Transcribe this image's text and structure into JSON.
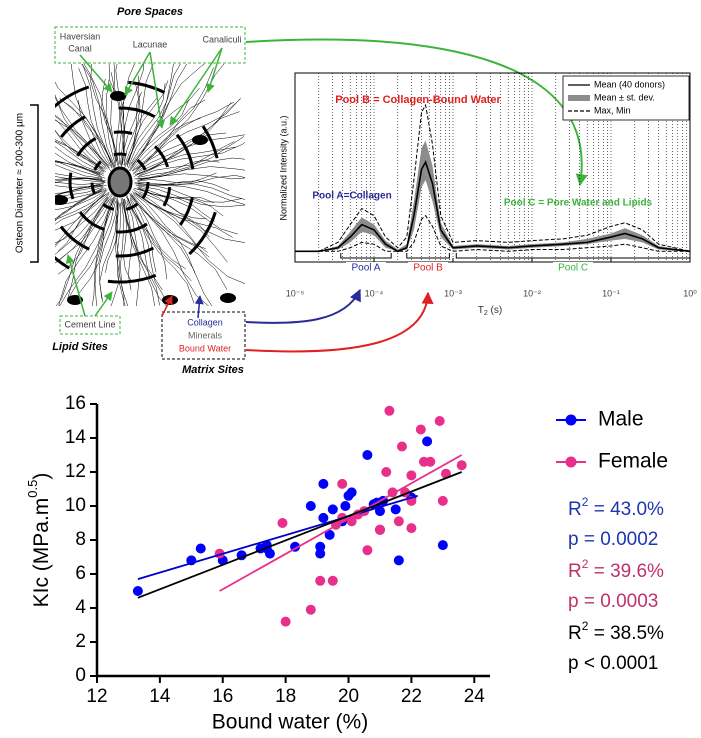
{
  "diagram": {
    "pore_spaces": "Pore Spaces",
    "haversian": [
      "Haversian",
      "Canal"
    ],
    "lacunae": "Lacunae",
    "canaliculi": "Canaliculi",
    "osteon_diameter": "Osteon Diameter ≈ 200-300 µm",
    "cement_line": "Cement Line",
    "lipid_sites": "Lipid Sites",
    "collagen": "Collagen",
    "minerals": "Minerals",
    "bound_water": "Bound Water",
    "matrix_sites": "Matrix Sites"
  },
  "chart_data": [
    {
      "type": "line",
      "xscale": "log",
      "ylabel": "Normalized Intensity (a.u.)",
      "xlabel": {
        "main": "T",
        "sub": "2",
        "rest": " (s)"
      },
      "xlim": [
        1e-05,
        1
      ],
      "ylim": [
        -0.06,
        1
      ],
      "xticks": [
        {
          "value": 1e-05,
          "label": "10⁻⁵"
        },
        {
          "value": 0.0001,
          "label": "10⁻⁴"
        },
        {
          "value": 0.001,
          "label": "10⁻³"
        },
        {
          "value": 0.01,
          "label": "10⁻²"
        },
        {
          "value": 0.1,
          "label": "10⁻¹"
        },
        {
          "value": 1,
          "label": "10⁰"
        }
      ],
      "grid": true,
      "x": [
        1e-05,
        2e-05,
        3.5e-05,
        5e-05,
        7e-05,
        0.0001,
        0.00014,
        0.0002,
        0.00026,
        0.00032,
        0.0004,
        0.00045,
        0.00055,
        0.0007,
        0.001,
        0.002,
        0.005,
        0.01,
        0.025,
        0.05,
        0.1,
        0.15,
        0.25,
        0.4,
        1
      ],
      "series": [
        {
          "name": "Mean (40 donors)",
          "color": "#000000",
          "values": [
            0,
            0,
            0.02,
            0.08,
            0.15,
            0.12,
            0.04,
            0,
            0.02,
            0.2,
            0.46,
            0.5,
            0.38,
            0.12,
            0.02,
            0.03,
            0.02,
            0.03,
            0.04,
            0.05,
            0.08,
            0.1,
            0.07,
            0.02,
            0
          ]
        },
        {
          "name": "Mean ± st. dev.",
          "color": "#8c8c8c",
          "lower": [
            0,
            0,
            0.01,
            0.05,
            0.11,
            0.09,
            0.02,
            0,
            0.01,
            0.12,
            0.36,
            0.4,
            0.28,
            0.08,
            0.01,
            0.02,
            0.01,
            0.02,
            0.03,
            0.04,
            0.06,
            0.07,
            0.05,
            0.01,
            0
          ],
          "upper": [
            0,
            0,
            0.03,
            0.11,
            0.19,
            0.15,
            0.06,
            0.01,
            0.04,
            0.28,
            0.58,
            0.62,
            0.48,
            0.16,
            0.03,
            0.04,
            0.03,
            0.04,
            0.05,
            0.07,
            0.1,
            0.13,
            0.09,
            0.03,
            0
          ]
        },
        {
          "name": "Max, Min",
          "color": "#000000",
          "dash": true,
          "max": [
            0,
            0,
            0.05,
            0.15,
            0.24,
            0.2,
            0.08,
            0.02,
            0.08,
            0.4,
            0.78,
            0.82,
            0.6,
            0.2,
            0.05,
            0.06,
            0.05,
            0.06,
            0.07,
            0.09,
            0.14,
            0.16,
            0.12,
            0.04,
            0
          ],
          "min": [
            0,
            0,
            0,
            0.02,
            0.05,
            0.04,
            0,
            0,
            0,
            0.05,
            0.18,
            0.2,
            0.14,
            0.03,
            0,
            0.01,
            0,
            0.01,
            0.01,
            0.02,
            0.03,
            0.04,
            0.02,
            0,
            0
          ]
        }
      ],
      "annotations": [
        {
          "text": "Pool B = Collagen-Bound Water",
          "color": "#e02020"
        },
        {
          "text": "Pool A=Collagen",
          "color": "#2a2a9a"
        },
        {
          "text": "Pool C = Pore Water and Lipids",
          "color": "#3cb43c"
        }
      ],
      "pools": [
        {
          "label": "Pool A",
          "color": "#2a2a9a",
          "range": [
            3.8e-05,
            0.000165
          ]
        },
        {
          "label": "Pool B",
          "color": "#e02020",
          "range": [
            0.00026,
            0.0009
          ]
        },
        {
          "label": "Pool C",
          "color": "#3cb43c",
          "range": [
            0.0011,
            1
          ]
        }
      ]
    },
    {
      "type": "scatter",
      "xlabel": "Bound water (%)",
      "ylabel": {
        "main": "KIc (MPa.m",
        "sup": "0.5",
        "rest": ")"
      },
      "xlim": [
        12,
        24.5
      ],
      "ylim": [
        0,
        16
      ],
      "xticks": [
        12,
        14,
        16,
        18,
        20,
        22,
        24
      ],
      "yticks": [
        0,
        2,
        4,
        6,
        8,
        10,
        12,
        14,
        16
      ],
      "series": [
        {
          "name": "Male",
          "color": "#0000ff",
          "x": [
            13.3,
            15.0,
            15.3,
            16.0,
            16.6,
            17.2,
            17.4,
            17.4,
            17.5,
            18.3,
            18.8,
            19.1,
            19.1,
            19.2,
            19.2,
            19.4,
            19.5,
            19.8,
            19.9,
            20.0,
            20.1,
            20.8,
            20.6,
            20.9,
            21.0,
            21.0,
            21.1,
            21.5,
            21.6,
            22.0,
            22.5,
            23.0
          ],
          "values": [
            5.0,
            6.8,
            7.5,
            6.8,
            7.1,
            7.5,
            7.5,
            7.7,
            7.2,
            7.6,
            10.0,
            7.2,
            7.6,
            11.3,
            9.3,
            8.3,
            9.8,
            9.1,
            10.0,
            10.6,
            10.8,
            10.1,
            13.0,
            10.2,
            9.7,
            8.6,
            10.3,
            9.8,
            6.8,
            10.5,
            13.8,
            7.7
          ]
        },
        {
          "name": "Female",
          "color": "#e8308a",
          "x": [
            15.9,
            17.9,
            18.0,
            18.8,
            19.1,
            19.5,
            19.6,
            19.8,
            19.8,
            20.3,
            20.1,
            20.5,
            20.6,
            21.0,
            21.2,
            21.3,
            21.4,
            21.7,
            21.8,
            21.6,
            22.0,
            22.0,
            22.0,
            22.3,
            22.4,
            22.6,
            23.0,
            23.1,
            22.9,
            23.6
          ],
          "values": [
            7.2,
            9.0,
            3.2,
            3.9,
            5.6,
            5.6,
            8.9,
            11.3,
            9.3,
            9.5,
            9.1,
            9.7,
            7.4,
            8.6,
            12.0,
            15.6,
            10.8,
            13.5,
            10.8,
            9.1,
            11.8,
            10.3,
            8.7,
            14.5,
            12.6,
            12.6,
            10.3,
            11.9,
            15.0,
            12.4
          ]
        }
      ],
      "fits": [
        {
          "color": "#0000cc",
          "x": [
            13.3,
            22.2
          ],
          "values": [
            5.7,
            10.6
          ]
        },
        {
          "color": "#e8308a",
          "x": [
            15.9,
            23.6
          ],
          "values": [
            5.0,
            13.0
          ]
        },
        {
          "color": "#000000",
          "x": [
            13.3,
            23.6
          ],
          "values": [
            4.6,
            12.0
          ]
        }
      ],
      "stats": [
        {
          "color": "#1f35b0",
          "r": "R",
          "sup": "2",
          "text": " = 43.0%",
          "p": "p = 0.0002"
        },
        {
          "color": "#c0306a",
          "r": "R",
          "sup": "2",
          "text": " = 39.6%",
          "p": "p = 0.0003"
        },
        {
          "color": "#000000",
          "r": "R",
          "sup": "2",
          "text": " = 38.5%",
          "p": "p < 0.0001"
        }
      ]
    }
  ]
}
